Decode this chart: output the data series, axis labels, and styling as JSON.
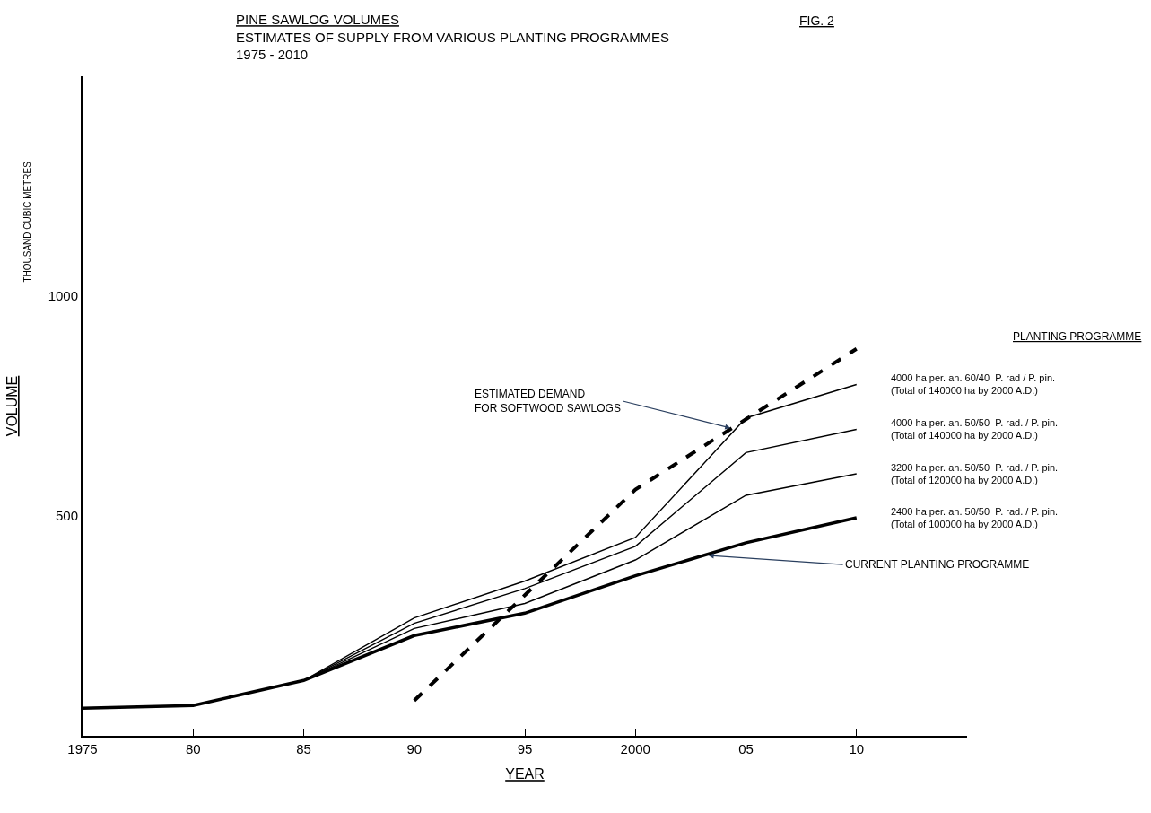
{
  "chart_data": {
    "type": "line",
    "title": "PINE SAWLOG VOLUMES",
    "subtitle": "ESTIMATES OF SUPPLY FROM VARIOUS PLANTING PROGRAMMES\n1975 - 2010",
    "xlabel": "YEAR",
    "ylabel": "VOLUME",
    "legend_title": "PLANTING PROGRAMME",
    "x": [
      1975,
      1980,
      1985,
      1990,
      1995,
      2000,
      2005,
      2010
    ],
    "series": [
      {
        "name": "4000 ha per. an. 60/40  P. rad / P. pin.\n(Total of 140000 ha by 2000 A.D.)",
        "color": "#000000",
        "values": [
          63,
          69,
          126,
          268,
          352,
          451,
          723,
          799
        ]
      },
      {
        "name": "4000 ha per. an. 50/50  P. rad. / P. pin.\n(Total of 140000 ha by 2000 A.D.)",
        "color": "#000000",
        "values": [
          63,
          69,
          126,
          256,
          335,
          431,
          644,
          697
        ]
      },
      {
        "name": "3200 ha per. an. 50/50  P. rad. / P. pin.\n(Total of 120000 ha by 2000 A.D.)",
        "color": "#000000",
        "values": [
          63,
          69,
          126,
          244,
          301,
          400,
          547,
          596
        ]
      },
      {
        "name": "2400 ha per. an. 50/50  P. rad. / P. pin.\n(Total of 100000 ha by 2000 A.D.)",
        "color": "#000000",
        "values": [
          63,
          69,
          126,
          228,
          279,
          364,
          439,
          496
        ]
      },
      {
        "color": "#000000",
        "line_style": "dashed",
        "x": [
          1990,
          1995,
          2000,
          2005,
          2010
        ],
        "values": [
          80,
          320,
          560,
          720,
          880
        ]
      }
    ],
    "xlim": [
      1975,
      2015
    ],
    "ylim": [
      0,
      1500
    ],
    "xticks": [
      1975,
      {
        "value": 1980,
        "label": "80"
      },
      {
        "value": 1985,
        "label": "85"
      },
      {
        "value": 1990,
        "label": "90"
      },
      {
        "value": 1995,
        "label": "95"
      },
      2000,
      {
        "value": 2005,
        "label": "05"
      },
      {
        "value": 2010,
        "label": "10"
      }
    ],
    "yticks": [
      500,
      1000
    ],
    "legend": false,
    "marker": "none",
    "annotations": [
      "FIG. 2",
      "THOUSAND CUBIC METRES",
      {
        "text": "ESTIMATED DEMAND\nFOR SOFTWOOD SAWLOGS",
        "x": 2004.3,
        "y": 700
      },
      {
        "text": "CURRENT PLANTING PROGRAMME",
        "x": 2003.3,
        "y": 410
      }
    ]
  }
}
